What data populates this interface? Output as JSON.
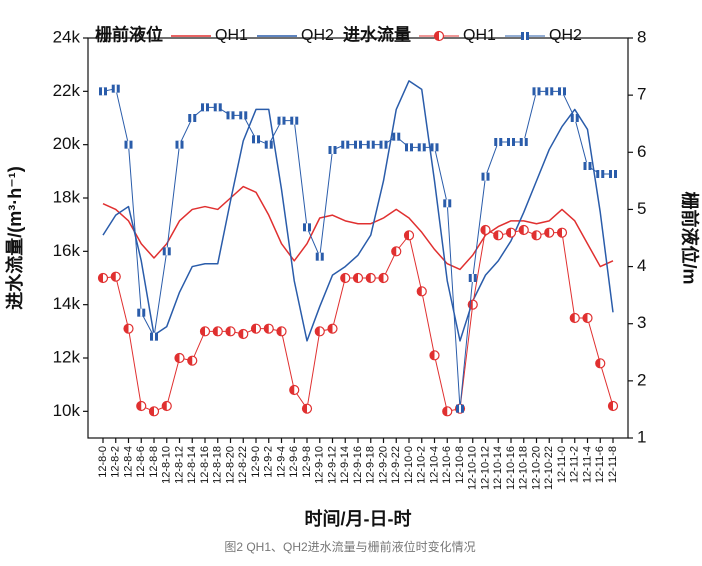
{
  "chart_data": {
    "type": "line_marker",
    "caption": "图2 QH1、QH2进水流量与栅前液位时变化情况",
    "ylabel": "进水流量/(m³·h⁻¹)",
    "y2label": "栅前液位/m",
    "xlabel": "时间/月-日-时",
    "legend_groups": [
      "栅前液位",
      "进水流量"
    ],
    "categories": [
      "12-8-0",
      "12-8-2",
      "12-8-4",
      "12-8-6",
      "12-8-8",
      "12-8-10",
      "12-8-12",
      "12-8-14",
      "12-8-16",
      "12-8-18",
      "12-8-20",
      "12-8-22",
      "12-9-0",
      "12-9-2",
      "12-9-4",
      "12-9-6",
      "12-9-8",
      "12-9-10",
      "12-9-12",
      "12-9-14",
      "12-9-16",
      "12-9-18",
      "12-9-20",
      "12-9-22",
      "12-10-0",
      "12-10-2",
      "12-10-4",
      "12-10-6",
      "12-10-8",
      "12-10-10",
      "12-10-12",
      "12-10-14",
      "12-10-16",
      "12-10-18",
      "12-10-20",
      "12-10-22",
      "12-11-0",
      "12-11-2",
      "12-11-4",
      "12-11-6",
      "12-11-8"
    ],
    "ylim": [
      9000,
      24000
    ],
    "yticks": [
      {
        "value": 10000,
        "label": "10k"
      },
      {
        "value": 12000,
        "label": "12k"
      },
      {
        "value": 14000,
        "label": "14k"
      },
      {
        "value": 16000,
        "label": "16k"
      },
      {
        "value": 18000,
        "label": "18k"
      },
      {
        "value": 20000,
        "label": "20k"
      },
      {
        "value": 22000,
        "label": "22k"
      },
      {
        "value": 24000,
        "label": "24k"
      }
    ],
    "y2lim": [
      1,
      8
    ],
    "y2ticks": [
      1,
      2,
      3,
      4,
      5,
      6,
      7,
      8
    ],
    "series": [
      {
        "name": "QH1",
        "color": "#e03030",
        "axis": "y2",
        "kind": "line",
        "values": [
          5.1,
          5.0,
          4.8,
          4.4,
          4.15,
          4.4,
          4.8,
          5.0,
          5.05,
          5.0,
          5.2,
          5.4,
          5.3,
          4.9,
          4.4,
          4.1,
          4.4,
          4.85,
          4.9,
          4.8,
          4.75,
          4.75,
          4.85,
          5.0,
          4.85,
          4.6,
          4.3,
          4.05,
          3.95,
          4.2,
          4.55,
          4.7,
          4.8,
          4.8,
          4.75,
          4.8,
          5.0,
          4.8,
          4.4,
          4.0,
          4.1
        ]
      },
      {
        "name": "QH2",
        "color": "#2a5caa",
        "axis": "y2",
        "kind": "line",
        "values": [
          4.55,
          4.9,
          5.05,
          4.1,
          2.8,
          2.95,
          3.55,
          4.0,
          4.05,
          4.05,
          5.15,
          6.2,
          6.75,
          6.75,
          5.35,
          3.75,
          2.7,
          3.3,
          3.85,
          4.0,
          4.2,
          4.55,
          5.5,
          6.75,
          7.25,
          7.1,
          5.5,
          3.75,
          2.7,
          3.4,
          3.85,
          4.1,
          4.45,
          4.95,
          5.5,
          6.05,
          6.45,
          6.75,
          6.4,
          4.95,
          3.2
        ]
      },
      {
        "name": "QH1",
        "color": "#e03030",
        "kind": "circle",
        "values": [
          15000,
          15050,
          13100,
          10200,
          10000,
          10200,
          12000,
          11900,
          13000,
          13000,
          13000,
          12900,
          13100,
          13100,
          13000,
          10800,
          10100,
          13000,
          13100,
          15000,
          15000,
          15000,
          15000,
          16000,
          16600,
          14500,
          12100,
          10000,
          10100,
          14000,
          16800,
          16600,
          16700,
          16800,
          16600,
          16700,
          16700,
          13500,
          13500,
          11800,
          10200
        ]
      },
      {
        "name": "QH2",
        "color": "#2a5caa",
        "kind": "square",
        "values": [
          22000,
          22100,
          20000,
          13700,
          12800,
          16000,
          20000,
          21000,
          21400,
          21400,
          21100,
          21100,
          20200,
          20000,
          20900,
          20900,
          16900,
          15800,
          19800,
          20000,
          20000,
          20000,
          20000,
          20300,
          19900,
          19900,
          19900,
          17800,
          10100,
          15000,
          18800,
          20100,
          20100,
          20100,
          22000,
          22000,
          22000,
          21000,
          19200,
          18900,
          18900
        ]
      }
    ]
  }
}
